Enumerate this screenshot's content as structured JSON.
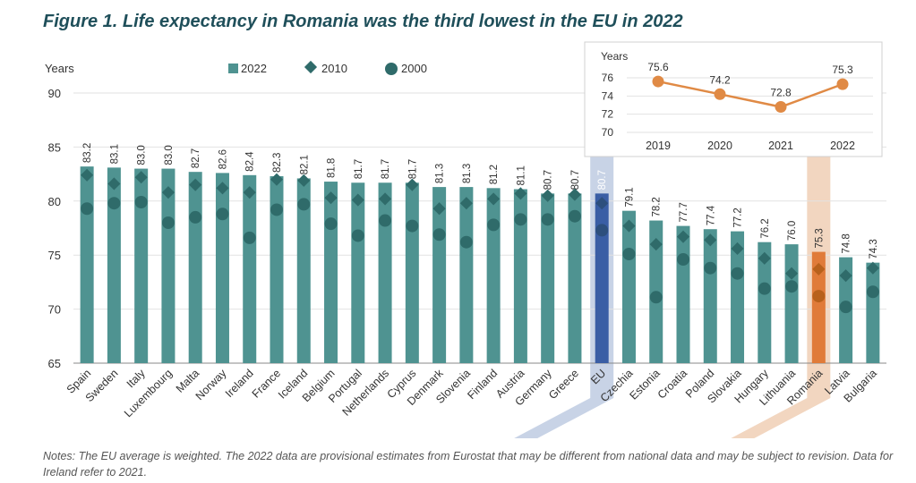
{
  "title": "Figure 1. Life expectancy in Romania was the third lowest in the EU in 2022",
  "notes": "Notes: The EU average is weighted. The 2022 data are provisional estimates from Eurostat that may be different from national data and may be subject to revision. Data for Ireland refer to 2021.",
  "colors": {
    "bar": "#4f9391",
    "marker": "#2f6b6a",
    "eu_bar": "#3a5ea5",
    "eu_marker": "#2d4f7d",
    "romania_bar": "#e07b39",
    "romania_marker": "#b8611c",
    "eu_band": "#c8d3e6",
    "romania_band": "#f2d6c0",
    "inset_line": "#e08a45"
  },
  "chart_data": [
    {
      "type": "bar",
      "ylabel": "Years",
      "ylim": [
        65,
        90
      ],
      "yticks": [
        65,
        70,
        75,
        80,
        85,
        90
      ],
      "legend": [
        "2022",
        "2010",
        "2000"
      ],
      "legend_position": "top",
      "categories": [
        "Spain",
        "Sweden",
        "Italy",
        "Luxembourg",
        "Malta",
        "Norway",
        "Ireland",
        "France",
        "Iceland",
        "Belgium",
        "Portugal",
        "Netherlands",
        "Cyprus",
        "Denmark",
        "Slovenia",
        "Finland",
        "Austria",
        "Germany",
        "Greece",
        "EU",
        "Czechia",
        "Estonia",
        "Croatia",
        "Poland",
        "Slovakia",
        "Hungary",
        "Lithuania",
        "Romania",
        "Latvia",
        "Bulgaria"
      ],
      "series": [
        {
          "name": "2022",
          "kind": "bar",
          "values": [
            83.2,
            83.1,
            83.0,
            83.0,
            82.7,
            82.6,
            82.4,
            82.3,
            82.1,
            81.8,
            81.7,
            81.7,
            81.7,
            81.3,
            81.3,
            81.2,
            81.1,
            80.7,
            80.7,
            80.7,
            79.1,
            78.2,
            77.7,
            77.4,
            77.2,
            76.2,
            76.0,
            75.3,
            74.8,
            74.3
          ],
          "labels": [
            "83.2",
            "83.1",
            "83.0",
            "83.0",
            "82.7",
            "82.6",
            "82.4",
            "82.3",
            "82.1",
            "81.8",
            "81.7",
            "81.7",
            "81.7",
            "81.3",
            "81.3",
            "81.2",
            "81.1",
            "80.7",
            "80.7",
            "80.7",
            "79.1",
            "78.2",
            "77.7",
            "77.4",
            "77.2",
            "76.2",
            "76.0",
            "75.3",
            "74.8",
            "74.3"
          ]
        },
        {
          "name": "2010",
          "kind": "diamond",
          "values": [
            82.4,
            81.6,
            82.2,
            80.8,
            81.5,
            81.2,
            80.8,
            82.0,
            81.9,
            80.3,
            80.1,
            80.2,
            81.5,
            79.3,
            79.8,
            80.2,
            80.7,
            80.5,
            80.6,
            79.8,
            77.7,
            76.0,
            76.7,
            76.4,
            75.6,
            74.7,
            73.3,
            73.7,
            73.1,
            73.8
          ]
        },
        {
          "name": "2000",
          "kind": "circle",
          "values": [
            79.3,
            79.8,
            79.9,
            78.0,
            78.5,
            78.8,
            76.6,
            79.2,
            79.7,
            77.9,
            76.8,
            78.2,
            77.7,
            76.9,
            76.2,
            77.8,
            78.3,
            78.3,
            78.6,
            77.3,
            75.1,
            71.1,
            74.6,
            73.8,
            73.3,
            71.9,
            72.1,
            71.2,
            70.2,
            71.6
          ]
        }
      ]
    },
    {
      "type": "line",
      "ylabel": "Years",
      "ylim": [
        70,
        76
      ],
      "yticks": [
        70,
        72,
        74,
        76
      ],
      "x": [
        "2019",
        "2020",
        "2021",
        "2022"
      ],
      "series": [
        {
          "name": "Romania",
          "values": [
            75.6,
            74.2,
            72.8,
            75.3
          ],
          "labels": [
            "75.6",
            "74.2",
            "72.8",
            "75.3"
          ]
        }
      ]
    }
  ]
}
